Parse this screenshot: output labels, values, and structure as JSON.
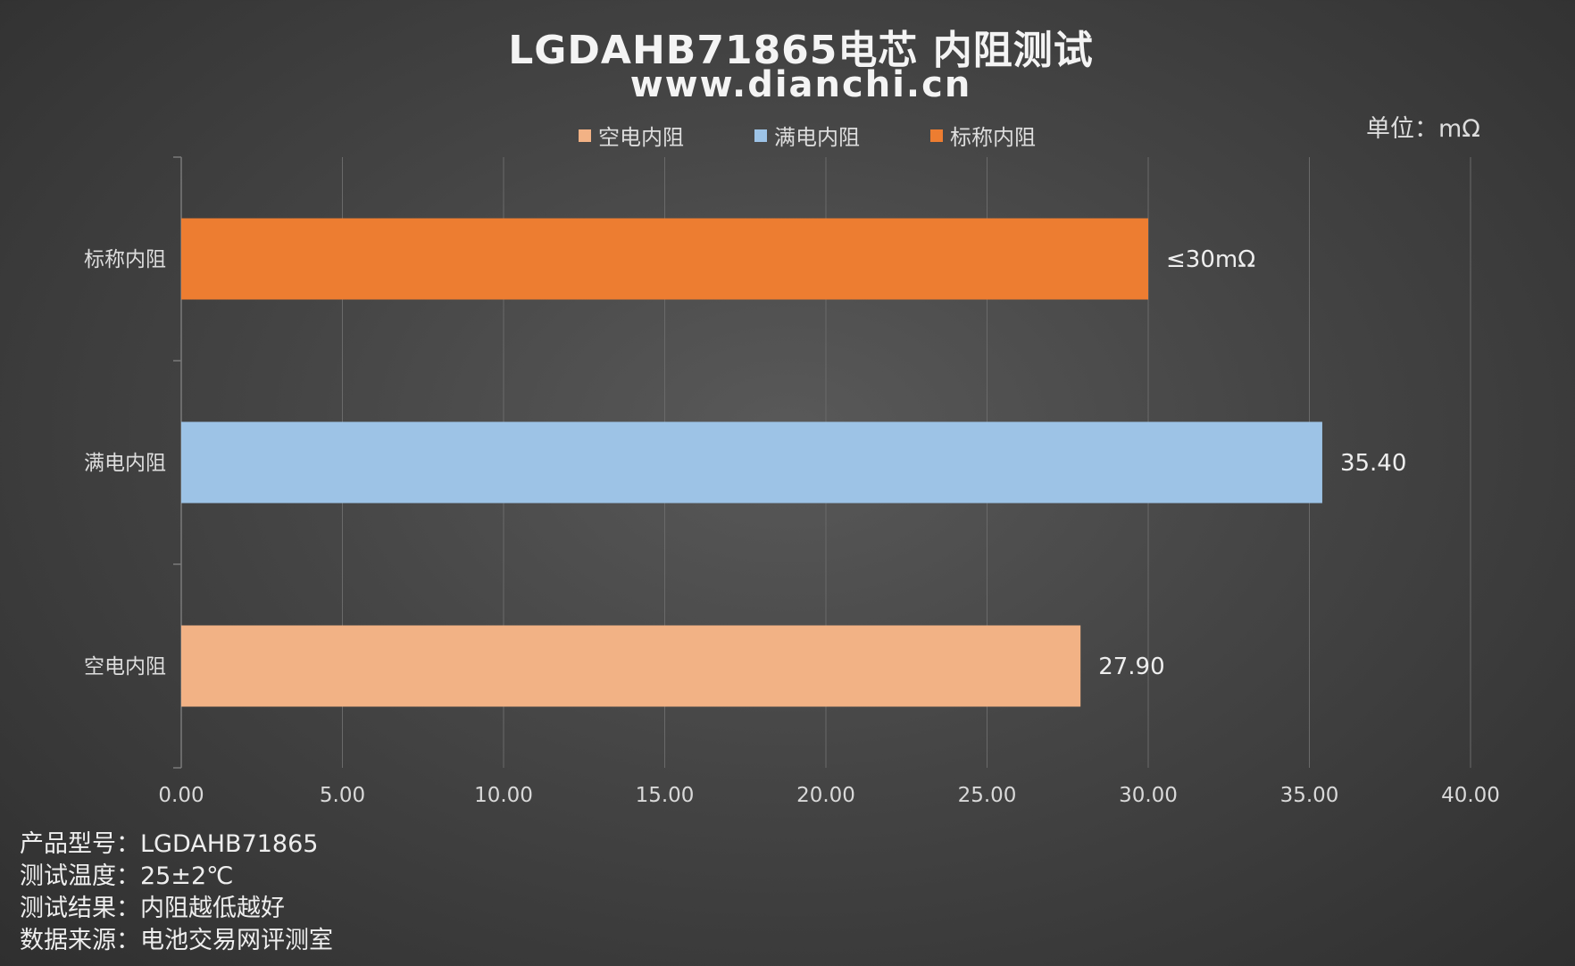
{
  "title": "LGDAHB71865电芯 内阻测试",
  "subtitle": "www.dianchi.cn",
  "unit_label": "单位：mΩ",
  "legend": [
    {
      "label": "空电内阻",
      "color": "#F2B285"
    },
    {
      "label": "满电内阻",
      "color": "#9DC3E6"
    },
    {
      "label": "标称内阻",
      "color": "#ED7D31"
    }
  ],
  "chart_data": {
    "type": "bar",
    "orientation": "horizontal",
    "categories": [
      "标称内阻",
      "满电内阻",
      "空电内阻"
    ],
    "values": [
      30.0,
      35.4,
      27.9
    ],
    "data_labels": [
      "≤30mΩ",
      "35.40",
      "27.90"
    ],
    "colors": [
      "#ED7D31",
      "#9DC3E6",
      "#F2B285"
    ],
    "xlim": [
      0,
      40
    ],
    "x_ticks": [
      "0.00",
      "5.00",
      "10.00",
      "15.00",
      "20.00",
      "25.00",
      "30.00",
      "35.00",
      "40.00"
    ],
    "grid": true,
    "legend_position": "top"
  },
  "footer": [
    "产品型号：LGDAHB71865",
    "测试温度：25±2℃",
    "测试结果：内阻越低越好",
    "数据来源：电池交易网评测室"
  ]
}
